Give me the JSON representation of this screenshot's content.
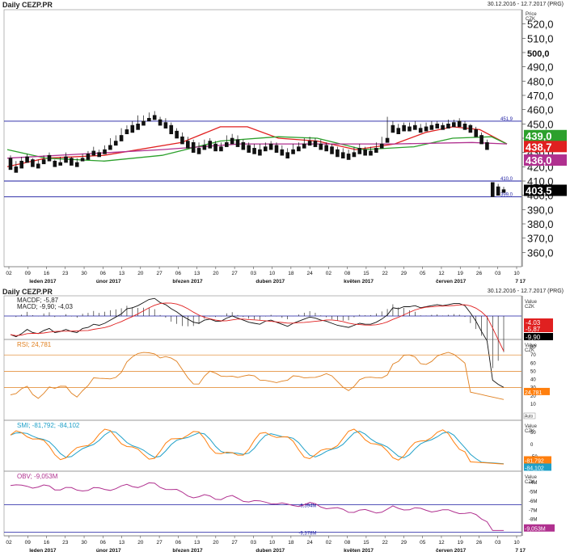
{
  "header": {
    "title": "Daily CEZP.PR",
    "range": "30.12.2016 - 12.7.2017 (PRG)"
  },
  "lower_header": {
    "title": "Daily CEZP.PR",
    "range": "30.12.2016 - 12.7.2017 (PRG)"
  },
  "price_axis": {
    "label_line1": "Price",
    "label_line2": "CZK"
  },
  "value_axis": {
    "label_line1": "Value",
    "label_line2": "CZK"
  },
  "chart_data": [
    {
      "type": "candlestick",
      "panel": "price",
      "ylim": [
        350,
        530
      ],
      "yticks": [
        "520,0",
        "510,0",
        "500,0",
        "490,0",
        "480,0",
        "470,0",
        "460,0",
        "450,0",
        "440,0",
        "430,0",
        "420,0",
        "410,0",
        "400,0",
        "390,0",
        "380,0",
        "370,0",
        "360,0"
      ],
      "bold_tick": "500,0",
      "x_day_ticks": [
        "02",
        "09",
        "16",
        "23",
        "30",
        "06",
        "13",
        "20",
        "27",
        "06",
        "13",
        "20",
        "27",
        "03",
        "10",
        "18",
        "24",
        "02",
        "08",
        "15",
        "22",
        "29",
        "05",
        "12",
        "19",
        "26",
        "03",
        "10"
      ],
      "x_month_labels": [
        "leden 2017",
        "únor 2017",
        "březen 2017",
        "duben 2017",
        "květen 2017",
        "červen 2017",
        "7 17"
      ],
      "horizontal_lines": [
        {
          "value": 451.9,
          "label": "451,9"
        },
        {
          "value": 410.0,
          "label": "410,0"
        },
        {
          "value": 399.0,
          "label": "399,0"
        }
      ],
      "last_values": [
        {
          "label": "439,0",
          "color": "#2ca02c"
        },
        {
          "label": "438,7",
          "color": "#e02020"
        },
        {
          "label": "436,0",
          "color": "#b0308f"
        },
        {
          "label": "403,5",
          "color": "#000000"
        }
      ],
      "moving_averages": [
        {
          "color": "#e02020",
          "points": [
            [
              0,
              420
            ],
            [
              10,
              426
            ],
            [
              25,
              428
            ],
            [
              45,
              437
            ],
            [
              55,
              448
            ],
            [
              62,
              448
            ],
            [
              70,
              440
            ],
            [
              80,
              438
            ],
            [
              90,
              432
            ],
            [
              100,
              436
            ],
            [
              108,
              444
            ],
            [
              115,
              448
            ],
            [
              122,
              446
            ],
            [
              129,
              436
            ]
          ]
        },
        {
          "color": "#2ca02c",
          "points": [
            [
              0,
              432
            ],
            [
              10,
              426
            ],
            [
              25,
              424
            ],
            [
              40,
              428
            ],
            [
              55,
              438
            ],
            [
              70,
              441
            ],
            [
              80,
              440
            ],
            [
              92,
              432
            ],
            [
              105,
              434
            ],
            [
              115,
              440
            ],
            [
              125,
              441
            ],
            [
              129,
              436
            ]
          ]
        },
        {
          "color": "#b0308f",
          "points": [
            [
              0,
              426
            ],
            [
              20,
              429
            ],
            [
              40,
              432
            ],
            [
              60,
              436
            ],
            [
              80,
              436
            ],
            [
              100,
              436
            ],
            [
              120,
              437
            ],
            [
              129,
              436
            ]
          ]
        }
      ],
      "candles": [
        [
          426,
          428,
          420,
          418
        ],
        [
          420,
          424,
          418,
          416
        ],
        [
          424,
          427,
          421,
          419
        ],
        [
          427,
          429,
          425,
          423
        ],
        [
          425,
          426,
          422,
          420
        ],
        [
          422,
          425,
          420,
          419
        ],
        [
          425,
          428,
          424,
          422
        ],
        [
          428,
          430,
          426,
          424
        ],
        [
          424,
          425,
          422,
          420
        ],
        [
          423,
          427,
          422,
          421
        ],
        [
          427,
          430,
          425,
          423
        ],
        [
          426,
          427,
          423,
          421
        ],
        [
          423,
          426,
          422,
          420
        ],
        [
          426,
          429,
          425,
          424
        ],
        [
          429,
          431,
          427,
          425
        ],
        [
          431,
          434,
          430,
          428
        ],
        [
          430,
          432,
          428,
          427
        ],
        [
          432,
          435,
          431,
          429
        ],
        [
          435,
          440,
          434,
          432
        ],
        [
          438,
          442,
          437,
          435
        ],
        [
          442,
          447,
          441,
          438
        ],
        [
          446,
          449,
          445,
          443
        ],
        [
          449,
          452,
          447,
          444
        ],
        [
          450,
          456,
          448,
          446
        ],
        [
          452,
          456,
          451,
          449
        ],
        [
          454,
          458,
          453,
          452
        ],
        [
          456,
          459,
          455,
          453
        ],
        [
          453,
          455,
          451,
          449
        ],
        [
          451,
          454,
          449,
          447
        ],
        [
          449,
          451,
          445,
          443
        ],
        [
          445,
          447,
          442,
          440
        ],
        [
          441,
          444,
          438,
          436
        ],
        [
          438,
          441,
          436,
          433
        ],
        [
          437,
          439,
          432,
          430
        ],
        [
          433,
          437,
          431,
          429
        ],
        [
          435,
          439,
          434,
          432
        ],
        [
          438,
          440,
          435,
          433
        ],
        [
          436,
          438,
          433,
          431
        ],
        [
          434,
          437,
          433,
          431
        ],
        [
          437,
          442,
          436,
          434
        ],
        [
          440,
          443,
          438,
          436
        ],
        [
          439,
          442,
          436,
          434
        ],
        [
          437,
          439,
          434,
          432
        ],
        [
          435,
          437,
          432,
          430
        ],
        [
          433,
          436,
          431,
          429
        ],
        [
          432,
          436,
          430,
          428
        ],
        [
          434,
          437,
          433,
          431
        ],
        [
          436,
          438,
          434,
          432
        ],
        [
          435,
          437,
          432,
          430
        ],
        [
          432,
          435,
          430,
          428
        ],
        [
          430,
          433,
          428,
          426
        ],
        [
          432,
          436,
          431,
          429
        ],
        [
          434,
          437,
          433,
          431
        ],
        [
          436,
          440,
          435,
          433
        ],
        [
          438,
          441,
          437,
          435
        ],
        [
          438,
          440,
          436,
          434
        ],
        [
          436,
          439,
          434,
          432
        ],
        [
          435,
          437,
          433,
          431
        ],
        [
          434,
          436,
          431,
          429
        ],
        [
          432,
          434,
          429,
          427
        ],
        [
          430,
          433,
          428,
          426
        ],
        [
          429,
          432,
          427,
          425
        ],
        [
          430,
          434,
          429,
          427
        ],
        [
          433,
          436,
          431,
          429
        ],
        [
          432,
          434,
          430,
          428
        ],
        [
          431,
          434,
          430,
          428
        ],
        [
          433,
          437,
          432,
          430
        ],
        [
          436,
          441,
          435,
          433
        ],
        [
          440,
          455,
          439,
          437
        ],
        [
          449,
          452,
          447,
          444
        ],
        [
          447,
          450,
          445,
          443
        ],
        [
          449,
          451,
          447,
          445
        ],
        [
          448,
          451,
          447,
          445
        ],
        [
          449,
          452,
          448,
          446
        ],
        [
          447,
          450,
          446,
          444
        ],
        [
          448,
          451,
          447,
          445
        ],
        [
          449,
          452,
          448,
          446
        ],
        [
          450,
          452,
          449,
          447
        ],
        [
          449,
          451,
          447,
          446
        ],
        [
          450,
          453,
          449,
          447
        ],
        [
          451,
          453,
          450,
          448
        ],
        [
          452,
          454,
          450,
          448
        ],
        [
          450,
          452,
          448,
          446
        ],
        [
          449,
          450,
          446,
          444
        ],
        [
          446,
          448,
          443,
          441
        ],
        [
          442,
          444,
          438,
          436
        ],
        [
          437,
          439,
          433,
          432
        ],
        [
          409,
          404,
          399,
          399
        ],
        [
          406,
          408,
          402,
          400
        ],
        [
          404,
          406,
          403,
          402
        ]
      ]
    },
    {
      "type": "line",
      "panel": "MACD",
      "title": "MACDF: -5,87 | MACD: -9,90; -4,03",
      "legend_lines": [
        "MACDF; -5,87",
        "MACD; -9,90; -4,03"
      ],
      "last_values": [
        {
          "label": "-4,03",
          "color": "#e02020"
        },
        {
          "label": "-5,87",
          "color": "#e02020"
        },
        {
          "label": "-9,90",
          "color": "#000000"
        }
      ]
    },
    {
      "type": "line",
      "panel": "RSI",
      "title": "RSI; 24,781",
      "yticks": [
        "80",
        "70",
        "60",
        "50",
        "40",
        "30",
        "20",
        "10"
      ],
      "reference_levels": [
        70,
        50,
        30
      ],
      "last_value": {
        "label": "24,781",
        "color": "#ff7f0e"
      },
      "auto_label": "Auto"
    },
    {
      "type": "line",
      "panel": "SMI",
      "title": "SMI; -81,792; -84,102",
      "yticks": [
        "50",
        "0",
        "-50"
      ],
      "last_values": [
        {
          "label": "-81,792",
          "color": "#ff7f0e"
        },
        {
          "label": "-84,102",
          "color": "#1fa0c8"
        }
      ]
    },
    {
      "type": "line",
      "panel": "OBV",
      "title": "OBV; -9,053M",
      "yticks": [
        "-4M",
        "-5M",
        "-6M",
        "-7M",
        "-8M",
        "-9M"
      ],
      "horizontal_lines": [
        {
          "value": -6.394,
          "label": "-6,394M"
        },
        {
          "value": -9.378,
          "label": "-9,378M"
        }
      ],
      "last_value": {
        "label": "-9,053M",
        "color": "#b0308f"
      }
    }
  ]
}
